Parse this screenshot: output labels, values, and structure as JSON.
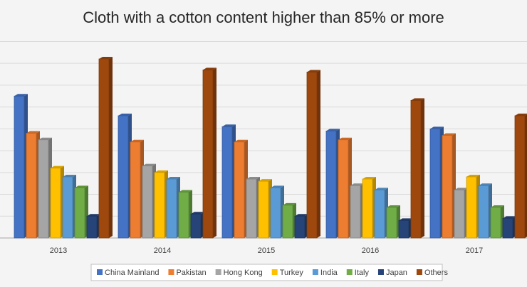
{
  "chart_data": {
    "type": "bar",
    "title": "Cloth with a cotton content higher than 85% or more",
    "categories": [
      "2013",
      "2014",
      "2015",
      "2016",
      "2017"
    ],
    "series": [
      {
        "name": "China Mainland",
        "color": "#4472c4",
        "values": [
          6.5,
          5.6,
          5.1,
          4.9,
          5.0
        ]
      },
      {
        "name": "Pakistan",
        "color": "#ed7d31",
        "values": [
          4.8,
          4.4,
          4.4,
          4.5,
          4.7
        ]
      },
      {
        "name": "Hong Kong",
        "color": "#a5a5a5",
        "values": [
          4.5,
          3.3,
          2.7,
          2.4,
          2.2
        ]
      },
      {
        "name": "Turkey",
        "color": "#ffc000",
        "values": [
          3.2,
          3.0,
          2.6,
          2.7,
          2.8
        ]
      },
      {
        "name": "India",
        "color": "#5b9bd5",
        "values": [
          2.8,
          2.7,
          2.3,
          2.2,
          2.4
        ]
      },
      {
        "name": "Italy",
        "color": "#70ad47",
        "values": [
          2.3,
          2.1,
          1.5,
          1.4,
          1.4
        ]
      },
      {
        "name": "Japan",
        "color": "#264478",
        "values": [
          1.0,
          1.1,
          1.0,
          0.8,
          0.9
        ]
      },
      {
        "name": "Others",
        "color": "#9e480e",
        "values": [
          8.2,
          7.7,
          7.6,
          6.3,
          5.6
        ]
      }
    ],
    "ylim": [
      0,
      9.6
    ],
    "yticks": [
      0,
      1,
      2,
      3,
      4,
      5,
      6,
      7,
      8,
      9
    ],
    "grid": true,
    "legend": "bottom"
  }
}
